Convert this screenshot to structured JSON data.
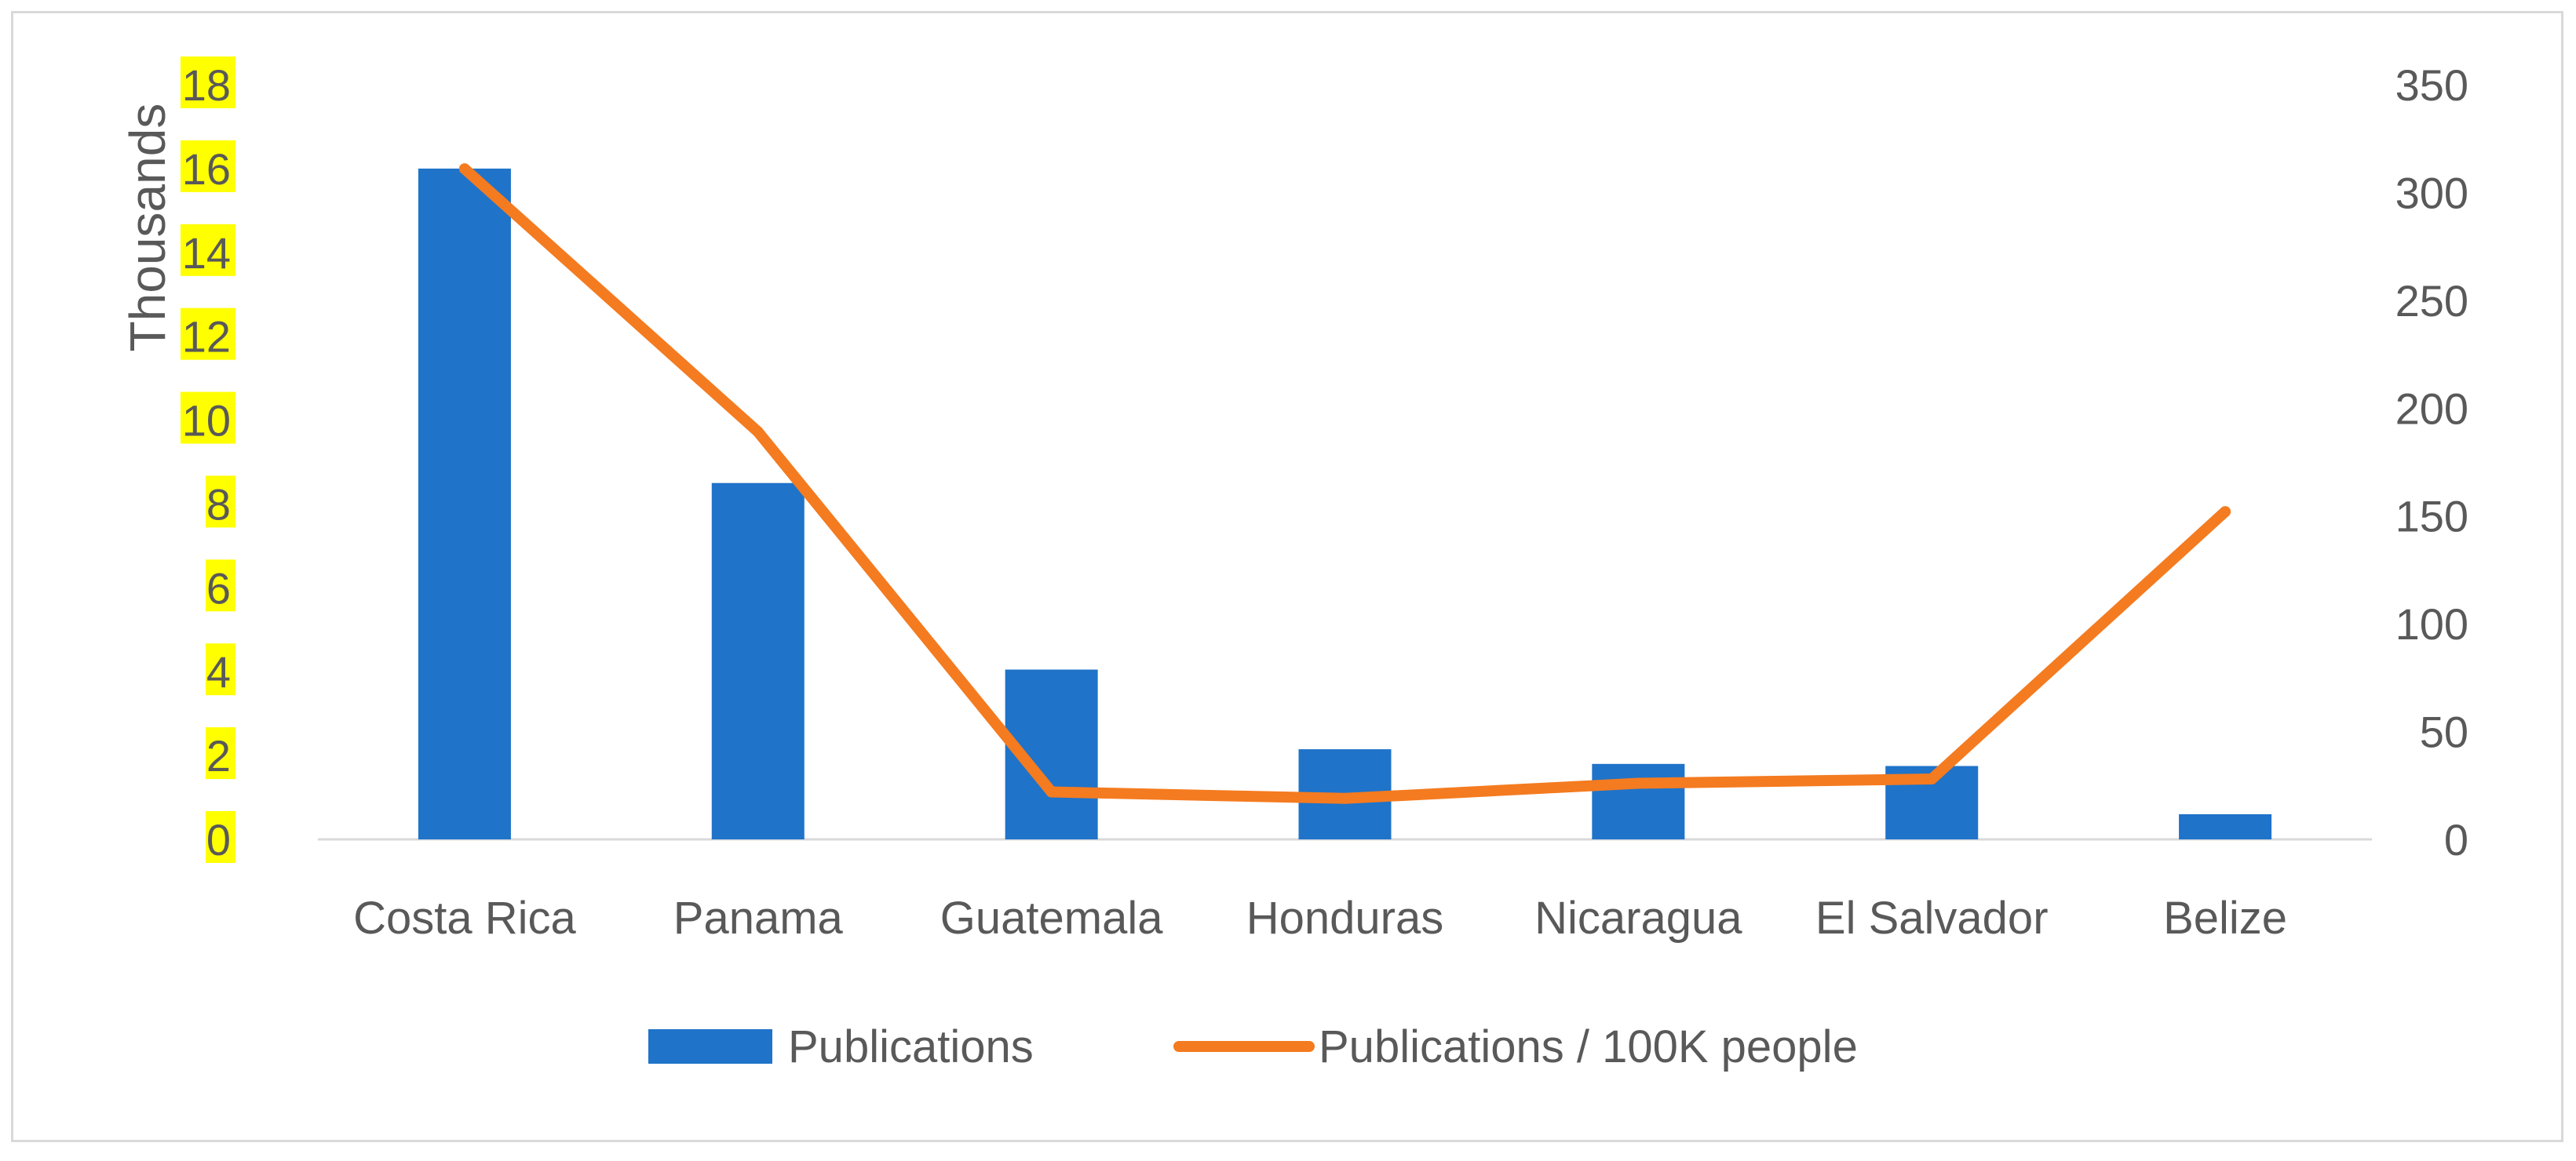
{
  "chart_data": {
    "type": "bar+line",
    "categories": [
      "Costa Rica",
      "Panama",
      "Guatemala",
      "Honduras",
      "Nicaragua",
      "El Salvador",
      "Belize"
    ],
    "series": [
      {
        "name": "Publications",
        "type": "bar",
        "axis": "left",
        "color": "#1f73c9",
        "values": [
          16.0,
          8.5,
          4.05,
          2.15,
          1.8,
          1.75,
          0.6
        ]
      },
      {
        "name": "Publications / 100K people",
        "type": "line",
        "axis": "right",
        "color": "#f47b20",
        "values": [
          311,
          189,
          22,
          19,
          26,
          28,
          152
        ]
      }
    ],
    "y_left": {
      "label": "Thousands",
      "min": 0,
      "max": 18,
      "step": 2,
      "ticks": [
        "0",
        "2",
        "4",
        "6",
        "8",
        "10",
        "12",
        "14",
        "16",
        "18"
      ],
      "tick_highlight": "#ffff00"
    },
    "y_right": {
      "min": 0,
      "max": 350,
      "step": 50,
      "ticks": [
        "0",
        "50",
        "100",
        "150",
        "200",
        "250",
        "300",
        "350"
      ]
    },
    "grid": false,
    "legend_position": "bottom"
  }
}
